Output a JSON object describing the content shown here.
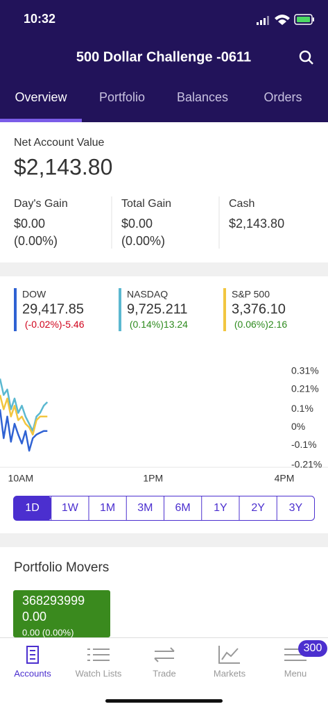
{
  "status": {
    "time": "10:32"
  },
  "header": {
    "title": "500 Dollar Challenge -0611"
  },
  "tabs": {
    "items": [
      "Overview",
      "Portfolio",
      "Balances",
      "Orders"
    ],
    "selected": 0
  },
  "account": {
    "label": "Net Account Value",
    "value": "$2,143.80",
    "stats": [
      {
        "label": "Day's Gain",
        "value": "$0.00",
        "pct": "(0.00%)"
      },
      {
        "label": "Total Gain",
        "value": "$0.00",
        "pct": "(0.00%)"
      },
      {
        "label": "Cash",
        "value": "$2,143.80"
      }
    ]
  },
  "indices": [
    {
      "name": "DOW",
      "value": "29,417.85",
      "change": "-5.46",
      "pct": "(-0.02%)",
      "color": "#2f62d3",
      "change_color": "#d0021b"
    },
    {
      "name": "NASDAQ",
      "value": "9,725.211",
      "change": "13.24",
      "pct": "(0.14%)",
      "color": "#5bb8d0",
      "change_color": "#2e8b1e"
    },
    {
      "name": "S&P 500",
      "value": "3,376.10",
      "change": "2.16",
      "pct": "(0.06%)",
      "color": "#f2c640",
      "change_color": "#2e8b1e"
    }
  ],
  "chart": {
    "xlim": [
      570,
      960
    ],
    "xticks": [
      {
        "value": 600,
        "label": "10AM"
      },
      {
        "value": 780,
        "label": "1PM"
      },
      {
        "value": 960,
        "label": "4PM"
      }
    ],
    "ylim": [
      -0.21,
      0.31
    ],
    "yticks": [
      {
        "value": 0.31,
        "label": "0.31%"
      },
      {
        "value": 0.21,
        "label": "0.21%"
      },
      {
        "value": 0.1,
        "label": "0.1%"
      },
      {
        "value": 0,
        "label": "0%"
      },
      {
        "value": -0.1,
        "label": "-0.1%"
      },
      {
        "value": -0.21,
        "label": "-0.21%"
      }
    ],
    "x": [
      570,
      575,
      580,
      585,
      590,
      595,
      600,
      605,
      610,
      615,
      620,
      625,
      630,
      635
    ],
    "series": [
      {
        "color": "#5bb8d0",
        "values": [
          0.27,
          0.18,
          0.21,
          0.1,
          0.16,
          0.08,
          0.12,
          0.06,
          0.02,
          -0.02,
          0.06,
          0.08,
          0.12,
          0.14
        ]
      },
      {
        "color": "#f2c640",
        "values": [
          0.18,
          0.1,
          0.16,
          0.06,
          0.12,
          0.04,
          0.06,
          0.02,
          0,
          -0.04,
          0.04,
          0.06,
          0.06,
          0.06
        ]
      },
      {
        "color": "#2f62d3",
        "values": [
          0.1,
          -0.06,
          0.06,
          -0.08,
          0.02,
          -0.04,
          -0.09,
          -0.02,
          -0.13,
          -0.06,
          -0.04,
          -0.03,
          -0.02,
          -0.02
        ]
      }
    ]
  },
  "ranges": {
    "items": [
      "1D",
      "1W",
      "1M",
      "3M",
      "6M",
      "1Y",
      "2Y",
      "3Y"
    ],
    "selected": 0
  },
  "movers": {
    "title": "Portfolio Movers",
    "cards": [
      {
        "symbol": "368293999",
        "value": "0.00",
        "change": "0.00 (0.00%)"
      }
    ]
  },
  "nav": {
    "items": [
      "Accounts",
      "Watch Lists",
      "Trade",
      "Markets",
      "Menu"
    ],
    "selected": 0,
    "badge": 300
  }
}
